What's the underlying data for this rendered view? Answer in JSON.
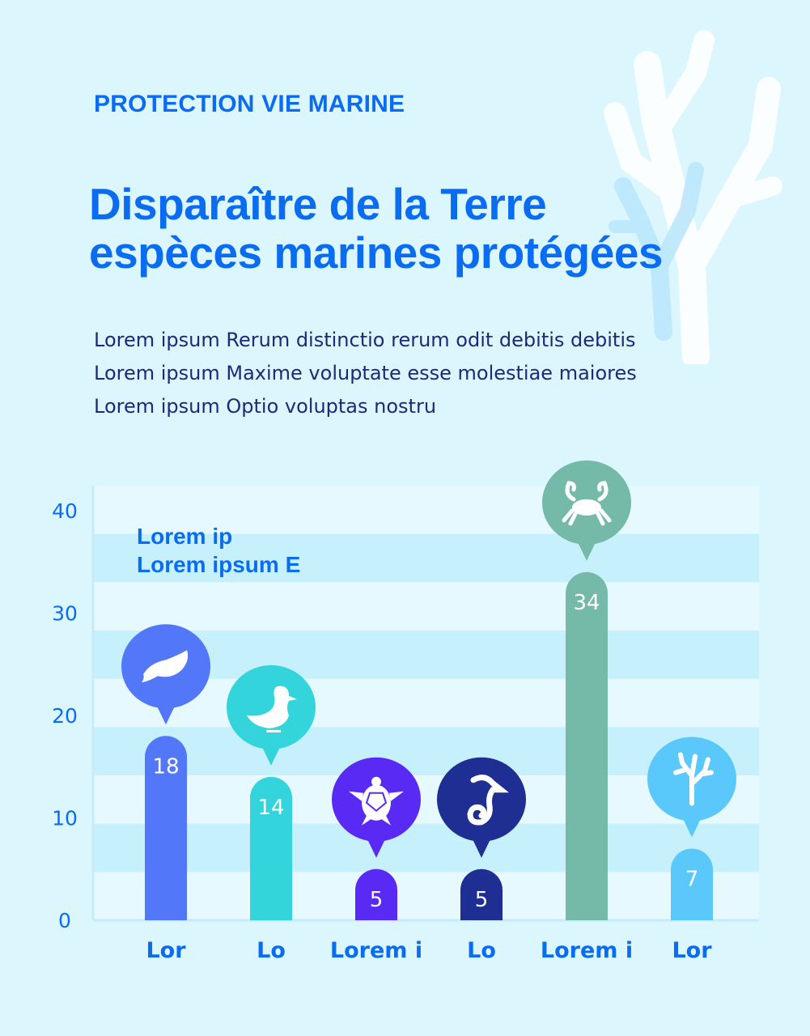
{
  "header": {
    "eyebrow": "PROTECTION VIE MARINE",
    "title_lines": [
      "Disparaître de la Terre",
      "espèces marines protégées"
    ],
    "description": [
      "Lorem ipsum Rerum distinctio rerum odit debitis debitis",
      "Lorem ipsum Maxime voluptate esse molestiae maiores",
      "Lorem ipsum Optio voluptas nostru"
    ]
  },
  "note_lines": [
    "Lorem ip",
    "Lorem ipsum E"
  ],
  "colors": {
    "background": "#dcf6fe",
    "accent": "#0a6cf0",
    "band_light": "#e6f9fe",
    "band_dark": "#c6f0fc"
  },
  "chart_data": {
    "type": "bar",
    "categories": [
      "Lor",
      "Lo",
      "Lorem i",
      "Lo",
      "Lorem i",
      "Lor"
    ],
    "values": [
      18,
      14,
      5,
      5,
      34,
      7
    ],
    "icons": [
      "whale-icon",
      "duck-icon",
      "turtle-icon",
      "seahorse-icon",
      "crab-icon",
      "coral-icon"
    ],
    "colors": [
      "#5277f8",
      "#34d4dc",
      "#5a2af5",
      "#1e2e92",
      "#75b9a8",
      "#5bc8fb"
    ],
    "yticks": [
      0,
      10,
      20,
      30,
      40
    ],
    "ylim": [
      0,
      42
    ],
    "grid": "alternating horizontal bands",
    "data_labels": true
  }
}
